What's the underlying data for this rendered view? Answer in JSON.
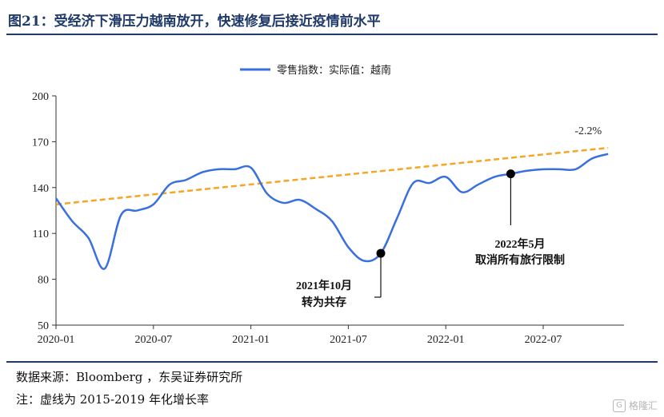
{
  "title": "图21：受经济下滑压力越南放开，快速修复后接近疫情前水平",
  "source_note": "数据来源：Bloomberg ，东吴证券研究所",
  "footnote": "注：虚线为 2015-2019 年化增长率",
  "watermark": "格隆汇",
  "colors": {
    "series": "#3a6fe0",
    "trend": "#f5a623",
    "title": "#1f3a68"
  },
  "chart_data": {
    "type": "line",
    "legend": {
      "label": "零售指数：实际值：越南",
      "placement": "top-center"
    },
    "ylim": [
      50,
      200
    ],
    "yticks": [
      50,
      80,
      110,
      140,
      170,
      200
    ],
    "xticks": [
      {
        "label": "2020-01",
        "x": "2020-01"
      },
      {
        "label": "2020-07",
        "x": "2020-07"
      },
      {
        "label": "2021-01",
        "x": "2021-01"
      },
      {
        "label": "2021-07",
        "x": "2021-07"
      },
      {
        "label": "2022-01",
        "x": "2022-01"
      },
      {
        "label": "2022-07",
        "x": "2022-07"
      }
    ],
    "series": [
      {
        "name": "零售指数：实际值：越南",
        "points": [
          [
            "2020-01",
            133
          ],
          [
            "2020-02",
            118
          ],
          [
            "2020-03",
            107
          ],
          [
            "2020-04",
            87
          ],
          [
            "2020-05",
            122
          ],
          [
            "2020-06",
            125
          ],
          [
            "2020-07",
            129
          ],
          [
            "2020-08",
            142
          ],
          [
            "2020-09",
            145
          ],
          [
            "2020-10",
            150
          ],
          [
            "2020-11",
            152
          ],
          [
            "2020-12",
            152
          ],
          [
            "2021-01",
            153
          ],
          [
            "2021-02",
            136
          ],
          [
            "2021-03",
            130
          ],
          [
            "2021-04",
            132
          ],
          [
            "2021-05",
            126
          ],
          [
            "2021-06",
            118
          ],
          [
            "2021-07",
            101
          ],
          [
            "2021-08",
            92
          ],
          [
            "2021-09",
            97
          ],
          [
            "2021-10",
            120
          ],
          [
            "2021-11",
            143
          ],
          [
            "2021-12",
            143
          ],
          [
            "2022-01",
            147
          ],
          [
            "2022-02",
            137
          ],
          [
            "2022-03",
            142
          ],
          [
            "2022-04",
            147
          ],
          [
            "2022-05",
            149
          ],
          [
            "2022-06",
            151
          ],
          [
            "2022-07",
            152
          ],
          [
            "2022-08",
            152
          ],
          [
            "2022-09",
            152
          ],
          [
            "2022-10",
            159
          ],
          [
            "2022-11",
            162
          ]
        ]
      }
    ],
    "trend_line": {
      "from": [
        "2020-01",
        129
      ],
      "to": [
        "2022-11",
        166
      ],
      "label": "-2.2%"
    },
    "annotations": [
      {
        "id": "oct-2021",
        "point": [
          "2021-09",
          97
        ],
        "line1": "2021年10月",
        "line2": "转为共存"
      },
      {
        "id": "may-2022",
        "point": [
          "2022-05",
          149
        ],
        "line1": "2022年5月",
        "line2": "取消所有旅行限制"
      }
    ]
  }
}
